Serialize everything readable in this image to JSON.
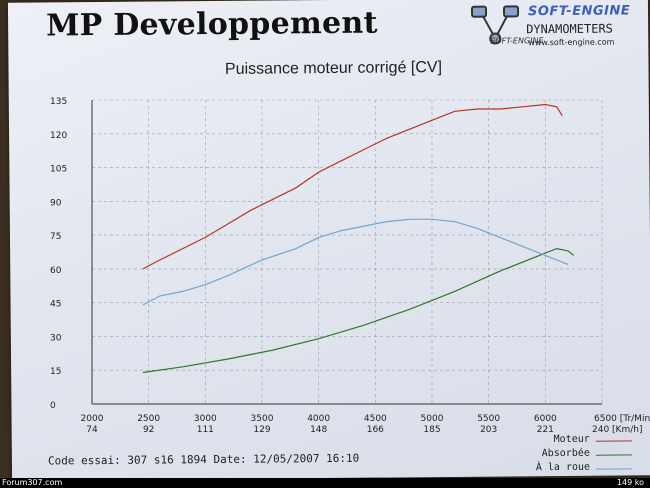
{
  "header": {
    "company": "MP Developpement",
    "logo_brand": "SOFT-ENGINE",
    "logo_brand_small": "SOFT-ENGINE",
    "logo_subtitle": "DYNAMOMETERS",
    "logo_url": "www.soft-engine.com"
  },
  "footer": {
    "code_line": "Code essai: 307 s16 1894  Date: 12/05/2007 16:10",
    "watermark_left": "Forum307.com",
    "watermark_right": "149 ko"
  },
  "colors": {
    "moteur": "#b3362a",
    "absorbee": "#2f7a2a",
    "roue": "#6fa6cf",
    "grid": "#9aa0ab"
  },
  "chart_data": {
    "type": "line",
    "title": "Puissance moteur corrigé [CV]",
    "x_units_label": "[Tr/Min.]",
    "x_speed_units_label": "[Km/h]",
    "xlim": [
      2000,
      6500
    ],
    "ylim": [
      0,
      135
    ],
    "yticks": [
      "0",
      "15",
      "30",
      "45",
      "60",
      "75",
      "90",
      "105",
      "120",
      "135"
    ],
    "xticks": [
      {
        "rpm": "2000",
        "kmh": "74"
      },
      {
        "rpm": "2500",
        "kmh": "92"
      },
      {
        "rpm": "3000",
        "kmh": "111"
      },
      {
        "rpm": "3500",
        "kmh": "129"
      },
      {
        "rpm": "4000",
        "kmh": "148"
      },
      {
        "rpm": "4500",
        "kmh": "166"
      },
      {
        "rpm": "5000",
        "kmh": "185"
      },
      {
        "rpm": "5500",
        "kmh": "203"
      },
      {
        "rpm": "6000",
        "kmh": "221"
      },
      {
        "rpm": "6500",
        "kmh": "240"
      }
    ],
    "grid": true,
    "legend_position": "bottom-right",
    "series": [
      {
        "name": "Moteur",
        "x": [
          2450,
          2600,
          2800,
          3000,
          3200,
          3400,
          3600,
          3800,
          4000,
          4200,
          4400,
          4600,
          4800,
          5000,
          5200,
          5400,
          5600,
          5800,
          6000,
          6100,
          6150
        ],
        "y": [
          60,
          64,
          69,
          74,
          80,
          86,
          91,
          96,
          103,
          108,
          113,
          118,
          122,
          126,
          130,
          131,
          131,
          132,
          133,
          132,
          128
        ]
      },
      {
        "name": "Absorbée",
        "x": [
          2450,
          2800,
          3200,
          3600,
          4000,
          4400,
          4800,
          5200,
          5600,
          6000,
          6100,
          6200,
          6250
        ],
        "y": [
          14,
          16.5,
          20,
          24,
          29,
          35,
          42,
          50,
          59,
          67,
          69,
          68,
          66
        ]
      },
      {
        "name": "À la roue",
        "x": [
          2450,
          2600,
          2800,
          3000,
          3200,
          3500,
          3800,
          4000,
          4200,
          4400,
          4600,
          4800,
          5000,
          5200,
          5400,
          5600,
          5800,
          6000,
          6200
        ],
        "y": [
          44,
          48,
          50,
          53,
          57,
          64,
          69,
          74,
          77,
          79,
          81,
          82,
          82,
          81,
          78,
          74,
          70,
          66,
          62
        ]
      }
    ]
  }
}
